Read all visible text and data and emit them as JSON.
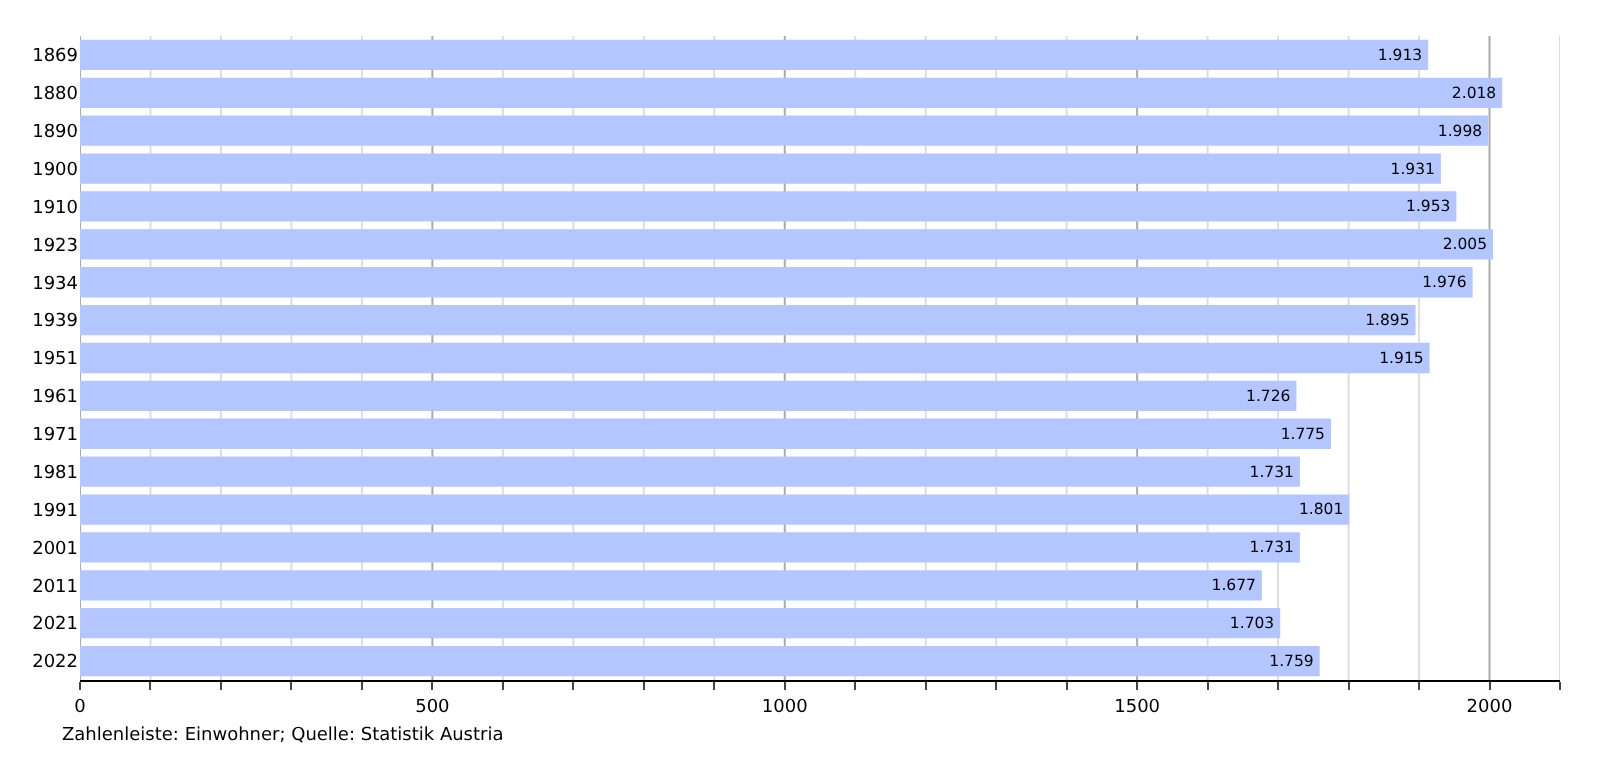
{
  "chart_data": {
    "type": "bar",
    "orientation": "horizontal",
    "categories": [
      "1869",
      "1880",
      "1890",
      "1900",
      "1910",
      "1923",
      "1934",
      "1939",
      "1951",
      "1961",
      "1971",
      "1981",
      "1991",
      "2001",
      "2011",
      "2021",
      "2022"
    ],
    "values": [
      1913,
      2018,
      1998,
      1931,
      1953,
      2005,
      1976,
      1895,
      1915,
      1726,
      1775,
      1731,
      1801,
      1731,
      1677,
      1703,
      1759
    ],
    "value_labels": [
      "1.913",
      "2.018",
      "1.998",
      "1.931",
      "1.953",
      "2.005",
      "1.976",
      "1.895",
      "1.915",
      "1.726",
      "1.775",
      "1.731",
      "1.801",
      "1.731",
      "1.677",
      "1.703",
      "1.759"
    ],
    "color": "#b3c6ff",
    "xlim": [
      0,
      2100
    ],
    "xticks": [
      0,
      {
        "value": 100,
        "label": null
      },
      {
        "value": 200,
        "label": null
      },
      {
        "value": 300,
        "label": null
      },
      {
        "value": 400,
        "label": null
      },
      500,
      {
        "value": 600,
        "label": null
      },
      {
        "value": 700,
        "label": null
      },
      {
        "value": 800,
        "label": null
      },
      {
        "value": 900,
        "label": null
      },
      1000,
      {
        "value": 1100,
        "label": null
      },
      {
        "value": 1200,
        "label": null
      },
      {
        "value": 1300,
        "label": null
      },
      {
        "value": 1400,
        "label": null
      },
      1500,
      {
        "value": 1600,
        "label": null
      },
      {
        "value": 1700,
        "label": null
      },
      {
        "value": 1800,
        "label": null
      },
      {
        "value": 1900,
        "label": null
      },
      2000,
      {
        "value": 2100,
        "label": null
      }
    ],
    "grid": "x",
    "annotations": [
      "Zahlenleiste: Einwohner; Quelle: Statistik Austria"
    ]
  }
}
